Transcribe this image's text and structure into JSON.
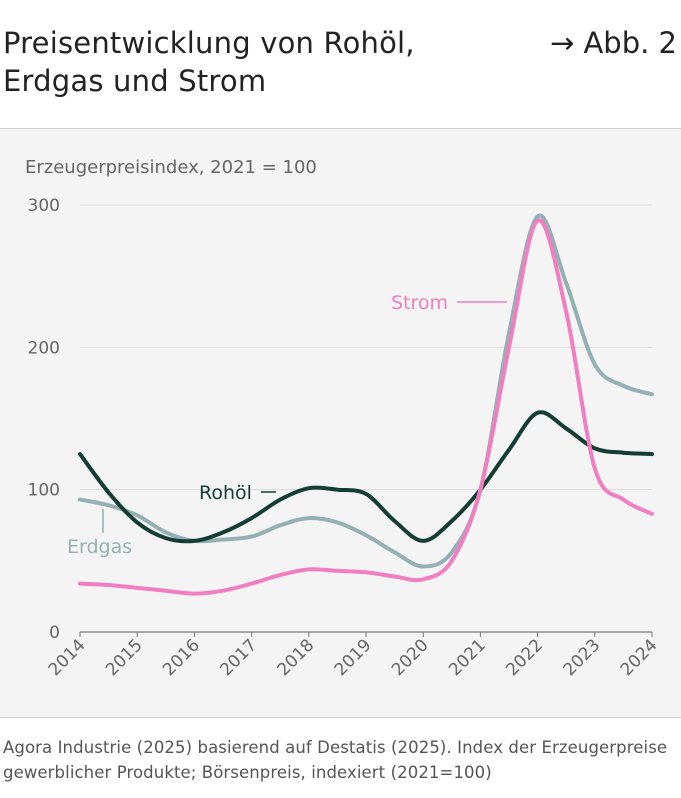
{
  "header": {
    "title": "Preisentwicklung von Rohöl, Erdgas und Strom",
    "figure_ref": "→ Abb. 2"
  },
  "source": "Agora Industrie (2025) basierend auf Destatis (2025). Index der Erzeugerpreise gewerblicher Produkte; Börsenpreis, indexiert (2021=100)",
  "colors": {
    "rohoel": "#133d35",
    "erdgas": "#94b0b5",
    "strom": "#f07ec0",
    "grid": "#dcdcdc",
    "axis": "#777777",
    "text": "#666666"
  },
  "chart_data": {
    "type": "line",
    "title": "",
    "ylabel": "Erzeugerpreisindex, 2021 = 100",
    "xlabel": "",
    "x": [
      "2014",
      "2015",
      "2016",
      "2017",
      "2018",
      "2019",
      "2020",
      "2021",
      "2022",
      "2023",
      "2024"
    ],
    "ylim": [
      0,
      300
    ],
    "yticks": [
      0,
      100,
      200,
      300
    ],
    "grid": true,
    "series": [
      {
        "name": "Rohöl",
        "color_key": "rohoel",
        "x": [
          2014,
          2014.5,
          2015,
          2015.5,
          2016,
          2016.5,
          2017,
          2017.5,
          2018,
          2018.5,
          2019,
          2019.5,
          2020,
          2020.5,
          2021,
          2021.5,
          2022,
          2022.5,
          2023,
          2023.5,
          2024
        ],
        "values": [
          125,
          98,
          77,
          66,
          64,
          70,
          80,
          93,
          101,
          100,
          97,
          78,
          64,
          78,
          100,
          128,
          154,
          143,
          129,
          126,
          125
        ]
      },
      {
        "name": "Erdgas",
        "color_key": "erdgas",
        "x": [
          2014,
          2014.5,
          2015,
          2015.5,
          2016,
          2016.5,
          2017,
          2017.5,
          2018,
          2018.5,
          2019,
          2019.5,
          2020,
          2020.5,
          2021,
          2021.5,
          2022,
          2022.5,
          2023,
          2023.5,
          2024
        ],
        "values": [
          93,
          89,
          82,
          70,
          64,
          65,
          67,
          75,
          80,
          77,
          68,
          56,
          46,
          56,
          100,
          210,
          292,
          245,
          188,
          173,
          167
        ]
      },
      {
        "name": "Strom",
        "color_key": "strom",
        "x": [
          2014,
          2014.5,
          2015,
          2015.5,
          2016,
          2016.5,
          2017,
          2017.5,
          2018,
          2018.5,
          2019,
          2019.5,
          2020,
          2020.5,
          2021,
          2021.5,
          2022,
          2022.5,
          2023,
          2023.5,
          2024
        ],
        "values": [
          34,
          33,
          31,
          29,
          27,
          29,
          34,
          40,
          44,
          43,
          42,
          39,
          37,
          50,
          100,
          200,
          289,
          225,
          115,
          93,
          83
        ]
      }
    ],
    "labels": {
      "rohoel": "Rohöl",
      "erdgas": "Erdgas",
      "strom": "Strom"
    }
  }
}
